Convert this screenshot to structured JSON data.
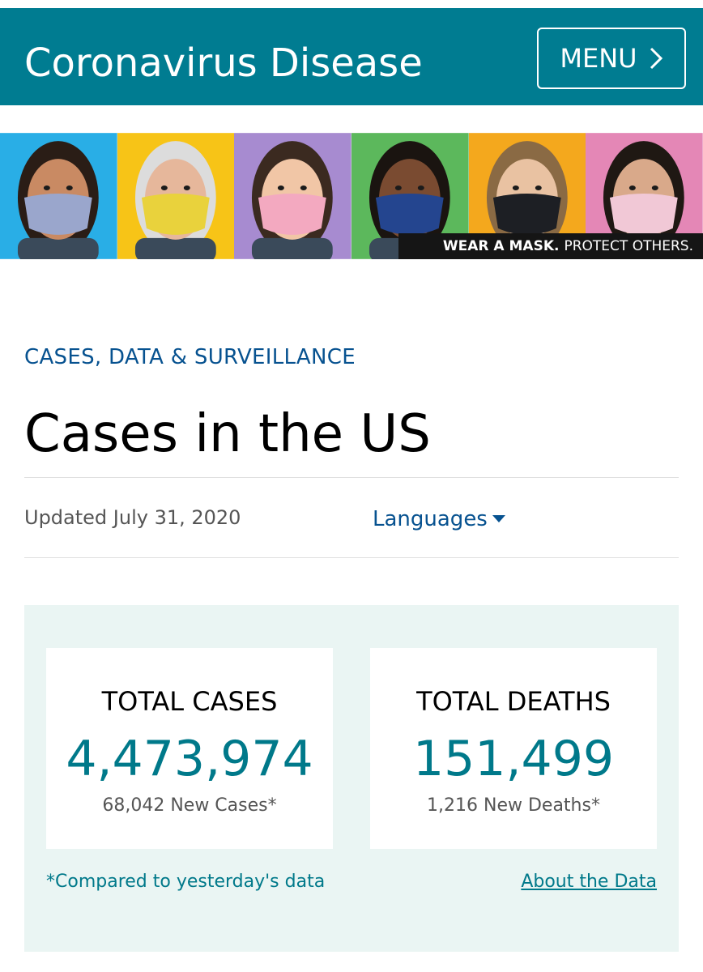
{
  "header": {
    "site_title": "Coronavirus Disease",
    "menu_label": "MENU",
    "background_color": "#007c91"
  },
  "banner": {
    "caption_bold": "WEAR A MASK.",
    "caption_rest": "PROTECT OTHERS.",
    "panels": [
      {
        "bg": "#29aee6",
        "mask": "#9aa6cc"
      },
      {
        "bg": "#f7c417",
        "mask": "#e9d23c"
      },
      {
        "bg": "#a78bd0",
        "mask": "#f3a9c0"
      },
      {
        "bg": "#5cb85c",
        "mask": "#24458f"
      },
      {
        "bg": "#f4a81d",
        "mask": "#1d1f24"
      },
      {
        "bg": "#e487b6",
        "mask": "#f1c8d6"
      }
    ]
  },
  "breadcrumb": "CASES, DATA & SURVEILLANCE",
  "page_title": "Cases in the US",
  "updated": "Updated July 31, 2020",
  "languages_label": "Languages",
  "stats": {
    "cases": {
      "label": "TOTAL CASES",
      "value": "4,473,974",
      "new": "68,042 New Cases*"
    },
    "deaths": {
      "label": "TOTAL DEATHS",
      "value": "151,499",
      "new": "1,216 New Deaths*"
    },
    "footnote": "*Compared to yesterday's data",
    "about_link": "About the Data"
  },
  "icons": {
    "menu": "chevron-right-icon",
    "languages": "caret-down-icon"
  }
}
